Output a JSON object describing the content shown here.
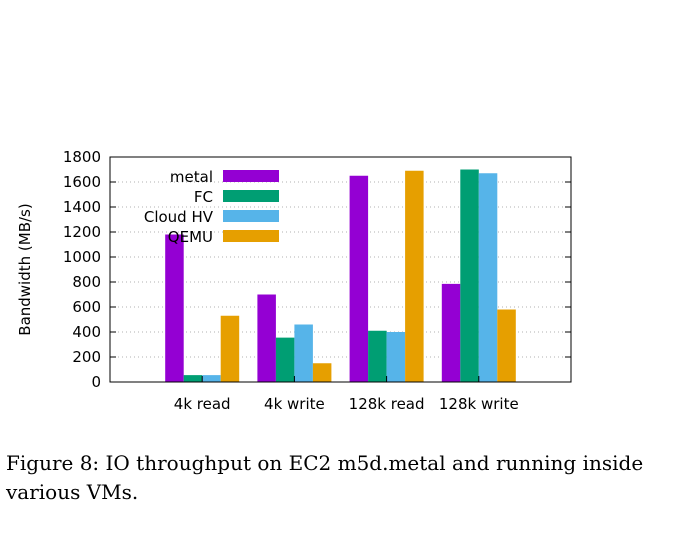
{
  "chart_data": {
    "type": "bar",
    "categories": [
      "4k read",
      "4k write",
      "128k read",
      "128k write"
    ],
    "series": [
      {
        "name": "metal",
        "color": "#9400d3",
        "values": [
          1180,
          700,
          1650,
          785
        ]
      },
      {
        "name": "FC",
        "color": "#009e73",
        "values": [
          55,
          355,
          410,
          1700
        ]
      },
      {
        "name": "Cloud HV",
        "color": "#56b4e9",
        "values": [
          55,
          460,
          400,
          1670
        ]
      },
      {
        "name": "QEMU",
        "color": "#e69f00",
        "values": [
          530,
          150,
          1690,
          580
        ]
      }
    ],
    "ylabel": "Bandwidth (MB/s)",
    "xlabel": "",
    "ylim": [
      0,
      1800
    ],
    "yticks": [
      "0",
      "200",
      "400",
      "600",
      "800",
      "1000",
      "1200",
      "1400",
      "1600",
      "1800"
    ],
    "grid": "horizontal dotted",
    "legend_position": "top-left"
  },
  "caption": "Figure 8: IO throughput on EC2 m5d.metal and running inside various VMs."
}
